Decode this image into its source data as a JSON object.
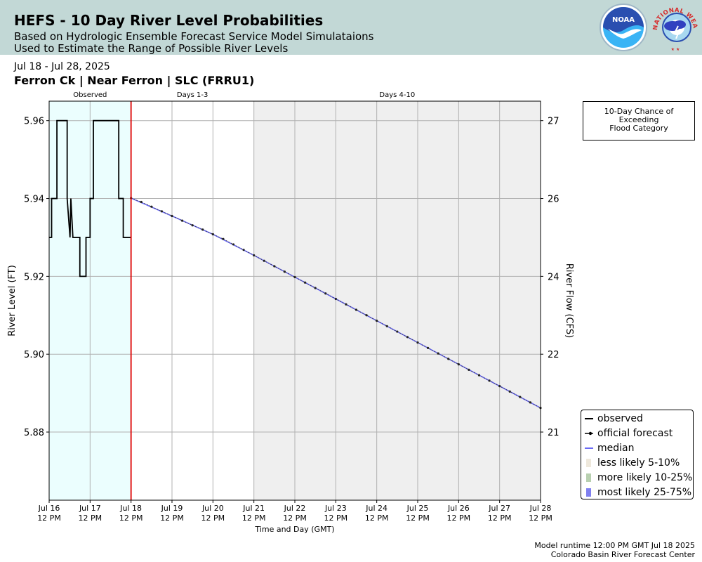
{
  "header": {
    "title": "HEFS - 10 Day River Level Probabilities",
    "subtitle1": "Based on Hydrologic Ensemble Forecast Service Model Simulataions",
    "subtitle2": "Used to Estimate the Range of Possible River Levels",
    "noaa_logo_text": "NOAA",
    "nws_logo_text": "NATIONAL WEATHER SERVICE"
  },
  "date_range": "Jul 18 - Jul 28, 2025",
  "location": "Ferron Ck | Near Ferron | SLC (FRRU1)",
  "flood_box": {
    "line1": "10-Day Chance of",
    "line2": "Exceeding",
    "line3": "Flood Category"
  },
  "legend": [
    {
      "label": "observed",
      "symbol": "black-line"
    },
    {
      "label": "official forecast",
      "symbol": "black-line-with-dots"
    },
    {
      "label": "median",
      "symbol": "blue-line"
    },
    {
      "label": "less likely 5-10%",
      "symbol": "swatch",
      "color": "#eee8dc"
    },
    {
      "label": "more likely 10-25%",
      "symbol": "swatch",
      "color": "#b8d0b0"
    },
    {
      "label": "most likely 25-75%",
      "symbol": "swatch",
      "color": "#8080f0"
    }
  ],
  "footer": {
    "runtime": "Model runtime 12:00 PM GMT Jul 18 2025",
    "center": "Colorado Basin River Forecast Center"
  },
  "colors": {
    "banner": "#c2d8d6",
    "observed_shade": "#ebfefe",
    "days_4_10_shade": "#efefef",
    "forecast_start_line": "#e00000",
    "median": "#6a6af5",
    "observed": "#000000"
  },
  "chart_data": {
    "type": "line",
    "xlabel": "Time and Day (GMT)",
    "ylabel_left": "River Level (FT)",
    "ylabel_right": "River Flow (CFS)",
    "x_range_days": [
      16.5,
      28.5
    ],
    "x_ticks": [
      {
        "day": 16.5,
        "line1": "Jul 16",
        "line2": "12 PM"
      },
      {
        "day": 17.5,
        "line1": "Jul 17",
        "line2": "12 PM"
      },
      {
        "day": 18.5,
        "line1": "Jul 18",
        "line2": "12 PM"
      },
      {
        "day": 19.5,
        "line1": "Jul 19",
        "line2": "12 PM"
      },
      {
        "day": 20.5,
        "line1": "Jul 20",
        "line2": "12 PM"
      },
      {
        "day": 21.5,
        "line1": "Jul 21",
        "line2": "12 PM"
      },
      {
        "day": 22.5,
        "line1": "Jul 22",
        "line2": "12 PM"
      },
      {
        "day": 23.5,
        "line1": "Jul 23",
        "line2": "12 PM"
      },
      {
        "day": 24.5,
        "line1": "Jul 24",
        "line2": "12 PM"
      },
      {
        "day": 25.5,
        "line1": "Jul 25",
        "line2": "12 PM"
      },
      {
        "day": 26.5,
        "line1": "Jul 26",
        "line2": "12 PM"
      },
      {
        "day": 27.5,
        "line1": "Jul 27",
        "line2": "12 PM"
      },
      {
        "day": 28.5,
        "line1": "Jul 28",
        "line2": "12 PM"
      }
    ],
    "ylim_left": [
      5.8625,
      5.965
    ],
    "y_ticks_left": [
      5.88,
      5.9,
      5.92,
      5.94,
      5.96
    ],
    "y_tick_labels_left": [
      "5.88",
      "5.90",
      "5.92",
      "5.94",
      "5.96"
    ],
    "y_ticks_right": [
      {
        "stage": 5.88,
        "label": "21"
      },
      {
        "stage": 5.9,
        "label": "22"
      },
      {
        "stage": 5.92,
        "label": "24"
      },
      {
        "stage": 5.94,
        "label": "26"
      },
      {
        "stage": 5.96,
        "label": "27"
      }
    ],
    "periods": [
      {
        "label": "Observed",
        "start": 16.5,
        "end": 18.5
      },
      {
        "label": "Days 1-3",
        "start": 18.5,
        "end": 21.5
      },
      {
        "label": "Days 4-10",
        "start": 21.5,
        "end": 28.5
      }
    ],
    "forecast_start": 18.5,
    "observed": {
      "x": [
        16.5,
        16.56,
        16.56,
        16.69,
        16.69,
        16.73,
        16.73,
        16.94,
        16.94,
        17.01,
        17.03,
        17.08,
        17.08,
        17.25,
        17.25,
        17.4,
        17.4,
        17.5,
        17.5,
        17.58,
        17.58,
        17.75,
        17.75,
        18.2,
        18.2,
        18.31,
        18.31,
        18.5
      ],
      "y": [
        5.93,
        5.93,
        5.94,
        5.94,
        5.96,
        5.96,
        5.96,
        5.96,
        5.94,
        5.93,
        5.94,
        5.93,
        5.93,
        5.93,
        5.92,
        5.92,
        5.93,
        5.93,
        5.94,
        5.94,
        5.96,
        5.96,
        5.96,
        5.96,
        5.94,
        5.94,
        5.93,
        5.93
      ]
    },
    "official_forecast": {
      "x": [
        18.5,
        18.75,
        19.0,
        19.25,
        19.5,
        19.75,
        20.0,
        20.25,
        20.5,
        20.75,
        21.0,
        21.25,
        21.5,
        21.75,
        22.0,
        22.25,
        22.5,
        22.75,
        23.0,
        23.25,
        23.5,
        23.75,
        24.0,
        24.25,
        24.5,
        24.75,
        25.0,
        25.25,
        25.5,
        25.75,
        26.0,
        26.25,
        26.5,
        26.75,
        27.0,
        27.25,
        27.5,
        27.75,
        28.0,
        28.25,
        28.5
      ],
      "y": [
        5.9401,
        5.9391,
        5.9379,
        5.9367,
        5.9355,
        5.9343,
        5.9331,
        5.932,
        5.9308,
        5.9296,
        5.9282,
        5.9268,
        5.9254,
        5.924,
        5.9226,
        5.9212,
        5.9198,
        5.9184,
        5.917,
        5.9156,
        5.9142,
        5.9128,
        5.9114,
        5.91,
        5.9086,
        5.9072,
        5.9058,
        5.9044,
        5.903,
        5.9016,
        5.9002,
        5.8988,
        5.8974,
        5.896,
        5.8946,
        5.8932,
        5.8918,
        5.8904,
        5.889,
        5.8876,
        5.8862
      ]
    },
    "median": {
      "x": [
        18.5,
        19.5,
        20.5,
        21.5,
        22.5,
        23.5,
        24.5,
        25.5,
        26.5,
        27.5,
        28.5
      ],
      "y": [
        5.9401,
        5.9355,
        5.9308,
        5.9254,
        5.9198,
        5.9142,
        5.9086,
        5.903,
        5.8974,
        5.8918,
        5.8862
      ]
    }
  }
}
